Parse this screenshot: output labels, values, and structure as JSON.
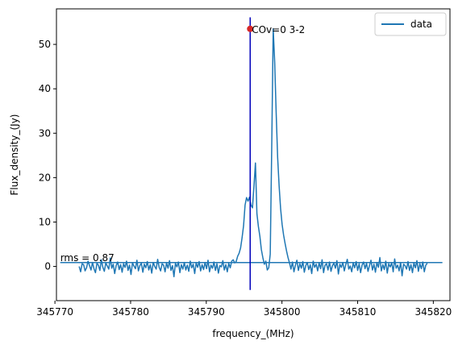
{
  "chart_data": {
    "type": "line",
    "xlabel": "frequency_(MHz)",
    "ylabel": "Flux_density_(Jy)",
    "xlim": [
      345770.2,
      345822.2
    ],
    "ylim": [
      -7.7,
      58
    ],
    "xticks": [
      345770,
      345780,
      345790,
      345800,
      345810,
      345820
    ],
    "yticks": [
      0,
      10,
      20,
      30,
      40,
      50
    ],
    "xtick_labels": [
      "345770",
      "345780",
      "345790",
      "345800",
      "345810",
      "345820"
    ],
    "ytick_labels": [
      "0",
      "10",
      "20",
      "30",
      "40",
      "50"
    ],
    "grid": false,
    "legend": {
      "position": "top-right",
      "entries": [
        {
          "name": "data",
          "color": "#1f77b4"
        }
      ]
    },
    "series": [
      {
        "name": "data",
        "color": "#1f77b4",
        "x_start": 345773.2,
        "x_end": 345819.2,
        "y": [
          0.0,
          -1.2,
          0.6,
          0.4,
          -1.0,
          -0.3,
          1.2,
          0.2,
          -0.8,
          0.9,
          -0.5,
          -1.4,
          0.7,
          0.3,
          -0.9,
          1.5,
          -0.2,
          -1.1,
          0.8,
          0.1,
          -0.6,
          1.9,
          -0.4,
          0.5,
          -1.6,
          0.2,
          1.0,
          -0.7,
          0.4,
          -1.3,
          0.6,
          -0.2,
          1.2,
          -0.9,
          0.3,
          -1.8,
          0.8,
          0.1,
          -0.5,
          1.4,
          -1.0,
          0.2,
          0.7,
          -1.3,
          0.5,
          -0.3,
          1.1,
          -0.8,
          0.4,
          -1.5,
          0.9,
          0.0,
          -0.6,
          1.6,
          -0.2,
          -1.0,
          0.6,
          0.3,
          -1.2,
          0.8,
          -0.4,
          1.3,
          -0.9,
          0.2,
          -2.3,
          0.7,
          -0.1,
          1.0,
          -1.4,
          0.4,
          -0.6,
          0.9,
          -0.8,
          0.3,
          -1.1,
          1.2,
          -0.3,
          0.5,
          -1.6,
          0.8,
          -0.2,
          1.1,
          -1.0,
          0.4,
          -0.7,
          0.9,
          -0.5,
          1.4,
          -1.2,
          0.3,
          -0.4,
          1.0,
          -0.9,
          0.6,
          -1.5,
          0.2,
          -0.1,
          1.3,
          -0.8,
          0.4,
          -1.2,
          0.7,
          -0.3,
          1.2,
          1.5,
          0.8,
          1.1,
          2.3,
          3.0,
          4.2,
          6.5,
          9.2,
          13.8,
          15.5,
          14.7,
          15.6,
          13.8,
          13.2,
          18.0,
          23.3,
          11.9,
          9.0,
          6.8,
          3.8,
          2.0,
          0.5,
          1.2,
          -0.8,
          -0.3,
          2.8,
          26.8,
          53.5,
          46.0,
          34.6,
          24.5,
          18.1,
          13.0,
          9.5,
          7.1,
          5.2,
          3.5,
          2.0,
          0.8,
          -0.6,
          1.0,
          -1.2,
          0.3,
          1.4,
          -0.9,
          0.6,
          -0.4,
          1.1,
          -1.3,
          0.2,
          0.9,
          -0.7,
          0.4,
          -1.6,
          1.2,
          -0.2,
          0.5,
          -1.0,
          0.8,
          -0.5,
          1.5,
          -1.4,
          0.3,
          0.6,
          -0.8,
          1.0,
          -1.1,
          0.2,
          0.7,
          -0.4,
          1.3,
          -1.7,
          0.5,
          -0.2,
          0.9,
          -1.0,
          0.4,
          1.6,
          -0.6,
          0.1,
          -1.2,
          0.8,
          -0.3,
          1.1,
          -0.9,
          0.6,
          -1.4,
          0.3,
          1.0,
          -0.5,
          0.7,
          -1.1,
          0.2,
          1.4,
          -0.8,
          0.5,
          -1.3,
          0.9,
          -0.2,
          2.0,
          -1.0,
          0.4,
          -0.7,
          1.2,
          -1.5,
          0.6,
          -0.1,
          0.8,
          -1.2,
          1.7,
          -0.4,
          0.3,
          -1.0,
          0.9,
          -2.1,
          0.5,
          0.2,
          -0.6,
          1.1,
          -0.9,
          0.4,
          -1.4,
          0.8,
          -0.3,
          1.3,
          -1.1,
          0.6,
          -0.5,
          1.0,
          -1.2,
          0.3,
          0.7
        ]
      }
    ],
    "rms_line": {
      "y": 0.87,
      "x": [
        345770.7,
        345821.2
      ],
      "label": "rms = 0.87",
      "color": "#1f77b4"
    },
    "marker_line": {
      "x": 345795.8,
      "y": [
        -5.3,
        56.1
      ],
      "color": "#0000bb"
    },
    "peak_point": {
      "x": 345795.8,
      "y": 53.5,
      "label": "COv=0 3-2",
      "color": "#d62728"
    }
  }
}
